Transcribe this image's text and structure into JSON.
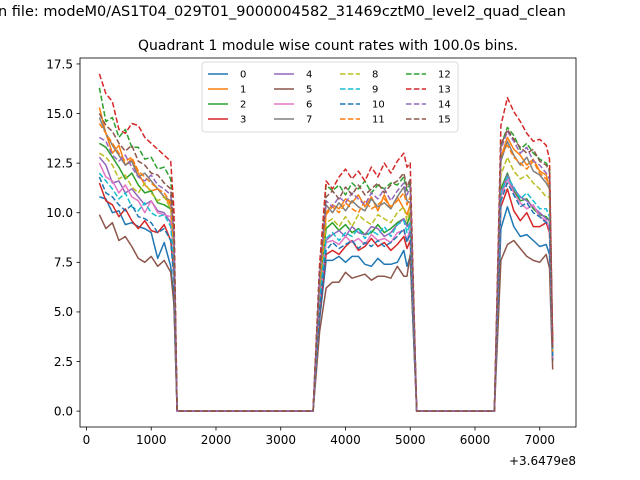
{
  "chart_data": {
    "type": "line",
    "suptitle": "n file: modeM0/AS1T04_029T01_9000004582_31469cztM0_level2_quad_clean",
    "title": "Quadrant 1 module wise count rates with 100.0s bins.",
    "xlabel": "",
    "ylabel": "",
    "x_offset_text": "+3.6479e8",
    "xlim": [
      -100,
      7560
    ],
    "ylim": [
      -0.8,
      17.8
    ],
    "x_ticks": [
      0,
      1000,
      2000,
      3000,
      4000,
      5000,
      6000,
      7000
    ],
    "x_tick_labels": [
      "0",
      "1000",
      "2000",
      "3000",
      "4000",
      "5000",
      "6000",
      "7000"
    ],
    "y_ticks": [
      0,
      2.5,
      5,
      7.5,
      10,
      12.5,
      15,
      17.5
    ],
    "y_tick_labels": [
      "0.0",
      "2.5",
      "5.0",
      "7.5",
      "10.0",
      "12.5",
      "15.0",
      "17.5"
    ],
    "legend_position": "upper center",
    "legend_columns": 4,
    "grid": false,
    "x": [
      200,
      300,
      400,
      500,
      600,
      700,
      800,
      900,
      1000,
      1100,
      1200,
      1300,
      1350,
      1400,
      1500,
      2000,
      2500,
      3000,
      3500,
      3600,
      3700,
      3800,
      3900,
      4000,
      4100,
      4200,
      4300,
      4400,
      4500,
      4600,
      4700,
      4800,
      4900,
      4950,
      5000,
      5100,
      5500,
      6000,
      6300,
      6400,
      6500,
      6600,
      6700,
      6800,
      6900,
      7000,
      7100,
      7150,
      7200
    ],
    "series": [
      {
        "name": "0",
        "color": "#1f77b4",
        "dash": "solid",
        "values": [
          10.8,
          10.7,
          10.0,
          10.1,
          9.4,
          9.5,
          9.3,
          9.2,
          9.0,
          7.7,
          8.5,
          7.3,
          5.7,
          0.0,
          0.0,
          0.0,
          0.0,
          0.0,
          0.0,
          4.6,
          7.6,
          7.6,
          7.8,
          7.5,
          7.8,
          7.8,
          7.4,
          7.3,
          7.7,
          7.4,
          7.4,
          7.5,
          8.1,
          7.3,
          7.8,
          0.0,
          0.0,
          0.0,
          0.0,
          9.2,
          10.3,
          9.3,
          8.8,
          8.9,
          8.6,
          8.3,
          8.4,
          7.9,
          2.5
        ]
      },
      {
        "name": "1",
        "color": "#ff7f0e",
        "dash": "solid",
        "values": [
          15.3,
          14.0,
          13.0,
          13.4,
          12.4,
          12.7,
          12.0,
          11.4,
          11.1,
          11.2,
          10.8,
          10.4,
          8.8,
          0.0,
          0.0,
          0.0,
          0.0,
          0.0,
          0.0,
          5.9,
          10.0,
          10.4,
          10.2,
          10.7,
          10.5,
          10.9,
          10.3,
          10.8,
          10.1,
          10.9,
          10.2,
          10.8,
          10.2,
          9.9,
          10.4,
          0.0,
          0.0,
          0.0,
          0.0,
          12.8,
          13.8,
          13.2,
          12.9,
          12.4,
          12.7,
          12.1,
          11.9,
          11.2,
          3.0
        ]
      },
      {
        "name": "2",
        "color": "#2ca02c",
        "dash": "solid",
        "values": [
          13.5,
          13.3,
          12.8,
          12.3,
          11.7,
          12.0,
          11.4,
          11.0,
          11.1,
          10.5,
          10.4,
          10.2,
          8.6,
          0.0,
          0.0,
          0.0,
          0.0,
          0.0,
          0.0,
          6.1,
          9.2,
          9.5,
          9.1,
          9.4,
          9.0,
          9.2,
          8.9,
          9.0,
          9.4,
          9.0,
          9.2,
          9.5,
          9.7,
          9.4,
          9.9,
          0.0,
          0.0,
          0.0,
          0.0,
          11.2,
          12.0,
          11.1,
          10.6,
          10.7,
          10.2,
          9.9,
          9.8,
          9.6,
          2.7
        ]
      },
      {
        "name": "3",
        "color": "#d62728",
        "dash": "solid",
        "values": [
          11.5,
          10.6,
          10.4,
          9.8,
          10.2,
          9.6,
          9.2,
          9.6,
          9.1,
          9.0,
          9.4,
          8.6,
          7.0,
          0.0,
          0.0,
          0.0,
          0.0,
          0.0,
          0.0,
          5.0,
          7.9,
          8.1,
          7.9,
          8.3,
          8.6,
          8.1,
          8.3,
          8.7,
          8.3,
          8.5,
          8.1,
          8.4,
          8.8,
          8.2,
          8.6,
          0.0,
          0.0,
          0.0,
          0.0,
          10.3,
          11.2,
          10.1,
          9.6,
          10.0,
          9.3,
          9.3,
          9.5,
          9.0,
          2.6
        ]
      },
      {
        "name": "4",
        "color": "#9467bd",
        "dash": "solid",
        "values": [
          12.8,
          12.4,
          11.5,
          11.6,
          11.0,
          11.2,
          10.8,
          10.4,
          10.6,
          10.1,
          10.0,
          9.5,
          8.0,
          0.0,
          0.0,
          0.0,
          0.0,
          0.0,
          0.0,
          5.6,
          8.6,
          8.9,
          9.1,
          8.8,
          9.3,
          9.0,
          8.9,
          9.3,
          9.2,
          8.8,
          9.0,
          9.4,
          9.7,
          9.3,
          9.5,
          0.0,
          0.0,
          0.0,
          0.0,
          11.0,
          11.9,
          11.2,
          10.8,
          10.6,
          10.3,
          10.0,
          9.7,
          9.6,
          2.7
        ]
      },
      {
        "name": "5",
        "color": "#8c564b",
        "dash": "solid",
        "values": [
          9.9,
          9.2,
          9.5,
          8.6,
          8.8,
          8.3,
          7.7,
          7.5,
          7.8,
          7.3,
          7.6,
          7.0,
          5.4,
          0.0,
          0.0,
          0.0,
          0.0,
          0.0,
          0.0,
          4.0,
          6.2,
          6.5,
          6.5,
          7.0,
          6.7,
          6.8,
          6.9,
          6.6,
          6.8,
          6.8,
          6.7,
          7.3,
          6.8,
          6.8,
          7.9,
          0.0,
          0.0,
          0.0,
          0.0,
          7.6,
          8.4,
          8.6,
          8.2,
          7.8,
          7.6,
          7.5,
          7.9,
          7.2,
          2.1
        ]
      },
      {
        "name": "6",
        "color": "#e377c2",
        "dash": "solid",
        "values": [
          12.5,
          11.8,
          11.6,
          11.0,
          11.4,
          10.8,
          10.6,
          10.0,
          10.6,
          10.0,
          9.9,
          9.8,
          7.8,
          0.0,
          0.0,
          0.0,
          0.0,
          0.0,
          0.0,
          5.4,
          8.5,
          8.6,
          8.4,
          8.8,
          8.5,
          8.7,
          8.4,
          8.9,
          8.6,
          8.7,
          8.5,
          9.0,
          9.1,
          8.6,
          9.2,
          0.0,
          0.0,
          0.0,
          0.0,
          10.8,
          11.7,
          11.0,
          10.5,
          10.2,
          10.4,
          9.8,
          9.6,
          9.2,
          2.7
        ]
      },
      {
        "name": "7",
        "color": "#7f7f7f",
        "dash": "solid",
        "values": [
          14.8,
          14.0,
          13.4,
          12.9,
          12.4,
          12.6,
          11.8,
          12.0,
          11.6,
          11.2,
          10.8,
          10.6,
          8.5,
          0.0,
          0.0,
          0.0,
          0.0,
          0.0,
          0.0,
          6.6,
          10.4,
          10.0,
          10.5,
          10.1,
          10.6,
          10.3,
          10.1,
          10.7,
          10.3,
          10.5,
          10.2,
          10.8,
          11.3,
          10.6,
          10.5,
          0.0,
          0.0,
          0.0,
          0.0,
          12.6,
          13.6,
          12.9,
          12.4,
          12.8,
          12.1,
          11.9,
          11.5,
          11.2,
          2.9
        ]
      },
      {
        "name": "8",
        "color": "#bcbd22",
        "dash": "dashed",
        "values": [
          13.0,
          12.8,
          12.4,
          11.7,
          11.9,
          11.3,
          11.0,
          11.5,
          11.0,
          10.6,
          10.8,
          10.2,
          8.2,
          0.0,
          0.0,
          0.0,
          0.0,
          0.0,
          0.0,
          6.3,
          9.5,
          9.7,
          9.3,
          9.8,
          9.3,
          9.9,
          9.6,
          9.4,
          9.9,
          9.7,
          9.5,
          10.0,
          10.3,
          9.6,
          10.2,
          0.0,
          0.0,
          0.0,
          0.0,
          11.9,
          12.8,
          12.1,
          11.7,
          11.9,
          11.5,
          11.2,
          10.8,
          10.8,
          2.9
        ]
      },
      {
        "name": "9",
        "color": "#17becf",
        "dash": "dashed",
        "values": [
          12.0,
          11.6,
          11.2,
          10.7,
          11.0,
          10.3,
          10.1,
          10.5,
          10.0,
          9.8,
          9.9,
          9.3,
          7.5,
          0.0,
          0.0,
          0.0,
          0.0,
          0.0,
          0.0,
          5.5,
          8.7,
          9.0,
          8.6,
          9.0,
          8.8,
          9.2,
          8.7,
          9.1,
          8.9,
          9.3,
          8.8,
          9.4,
          9.6,
          9.0,
          9.5,
          0.0,
          0.0,
          0.0,
          0.0,
          11.0,
          11.8,
          11.3,
          10.7,
          11.0,
          10.6,
          10.2,
          10.2,
          9.8,
          2.8
        ]
      },
      {
        "name": "10",
        "color": "#1f77b4",
        "dash": "dashed",
        "values": [
          11.8,
          11.0,
          10.8,
          10.4,
          10.1,
          10.4,
          9.8,
          9.7,
          9.5,
          9.0,
          9.2,
          8.6,
          6.6,
          0.0,
          0.0,
          0.0,
          0.0,
          0.0,
          0.0,
          5.2,
          8.1,
          8.5,
          8.2,
          8.4,
          8.6,
          8.2,
          8.5,
          8.3,
          8.6,
          8.3,
          8.5,
          8.8,
          9.2,
          8.5,
          9.0,
          0.0,
          0.0,
          0.0,
          0.0,
          10.6,
          11.5,
          10.9,
          10.3,
          10.5,
          10.0,
          9.8,
          9.5,
          9.4,
          2.6
        ]
      },
      {
        "name": "11",
        "color": "#ff7f0e",
        "dash": "dashed",
        "values": [
          14.5,
          14.0,
          13.5,
          13.0,
          12.6,
          12.8,
          12.1,
          11.8,
          11.5,
          11.2,
          11.0,
          10.5,
          8.4,
          0.0,
          0.0,
          0.0,
          0.0,
          0.0,
          0.0,
          6.5,
          9.9,
          10.3,
          10.0,
          10.5,
          10.2,
          10.0,
          10.6,
          10.2,
          10.4,
          10.7,
          10.3,
          10.6,
          11.0,
          10.4,
          10.8,
          0.0,
          0.0,
          0.0,
          0.0,
          12.9,
          13.4,
          12.8,
          12.5,
          12.2,
          12.6,
          12.0,
          11.7,
          11.4,
          3.0
        ]
      },
      {
        "name": "12",
        "color": "#2ca02c",
        "dash": "dashed",
        "values": [
          16.3,
          14.6,
          14.8,
          13.8,
          14.2,
          13.3,
          13.3,
          12.7,
          12.8,
          12.2,
          12.3,
          11.7,
          9.6,
          0.0,
          0.0,
          0.0,
          0.0,
          0.0,
          0.0,
          7.2,
          11.4,
          11.1,
          11.4,
          10.9,
          11.5,
          11.2,
          11.6,
          11.0,
          11.4,
          11.2,
          11.5,
          11.4,
          11.8,
          11.1,
          11.5,
          0.0,
          0.0,
          0.0,
          0.0,
          13.4,
          14.3,
          13.9,
          13.2,
          13.5,
          13.0,
          12.7,
          12.5,
          12.2,
          3.2
        ]
      },
      {
        "name": "13",
        "color": "#d62728",
        "dash": "dashed",
        "values": [
          17.0,
          16.0,
          15.6,
          14.2,
          14.0,
          14.5,
          14.4,
          13.8,
          13.5,
          13.2,
          12.9,
          12.6,
          10.2,
          0.0,
          0.0,
          0.0,
          0.0,
          0.0,
          0.0,
          7.4,
          11.6,
          11.2,
          11.8,
          12.2,
          11.7,
          12.1,
          11.6,
          12.3,
          11.8,
          12.5,
          12.0,
          12.6,
          13.0,
          12.3,
          12.5,
          0.0,
          0.0,
          0.0,
          0.0,
          14.4,
          15.8,
          15.1,
          14.6,
          14.0,
          13.6,
          13.7,
          13.4,
          12.7,
          3.4
        ]
      },
      {
        "name": "14",
        "color": "#9467bd",
        "dash": "dashed",
        "values": [
          13.8,
          13.6,
          12.9,
          12.6,
          12.9,
          12.3,
          11.8,
          11.6,
          11.9,
          11.4,
          11.2,
          10.9,
          8.9,
          0.0,
          0.0,
          0.0,
          0.0,
          0.0,
          0.0,
          6.8,
          10.6,
          10.3,
          10.8,
          10.5,
          11.0,
          10.7,
          10.4,
          11.0,
          10.7,
          11.2,
          10.6,
          11.1,
          11.5,
          10.9,
          11.3,
          0.0,
          0.0,
          0.0,
          0.0,
          13.2,
          14.1,
          13.6,
          13.0,
          13.3,
          12.6,
          12.4,
          12.0,
          11.7,
          3.1
        ]
      },
      {
        "name": "15",
        "color": "#8c564b",
        "dash": "dashed",
        "values": [
          15.0,
          14.4,
          14.1,
          13.5,
          13.1,
          13.4,
          12.6,
          12.4,
          12.0,
          11.9,
          11.5,
          11.2,
          9.1,
          0.0,
          0.0,
          0.0,
          0.0,
          0.0,
          0.0,
          6.9,
          10.8,
          11.1,
          10.7,
          11.3,
          10.9,
          11.4,
          10.9,
          11.2,
          11.5,
          11.0,
          11.4,
          11.6,
          12.0,
          11.3,
          11.7,
          0.0,
          0.0,
          0.0,
          0.0,
          13.4,
          14.2,
          13.7,
          13.3,
          13.0,
          13.2,
          12.6,
          12.4,
          12.1,
          3.2
        ]
      }
    ]
  }
}
